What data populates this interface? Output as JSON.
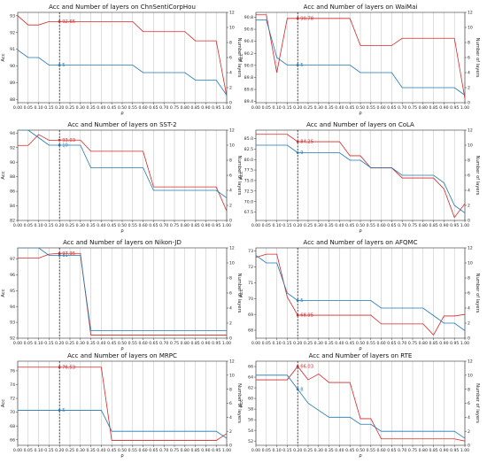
{
  "colors": {
    "acc": "#d62728",
    "layers": "#1f77b4",
    "grid": "#bdbdbd",
    "marker_line": "#000000"
  },
  "layout_words": {
    "grid": "vertical lines at every x tick",
    "left_axis": "Acc (red line)",
    "right_axis": "Number of layers (blue line)"
  },
  "chart_data": [
    {
      "type": "line",
      "title": "Acc and Number of layers on ChnSentiCorpHou",
      "xlabel": "ρ",
      "ylabel_left": "Acc",
      "ylabel_right": "Number of layers",
      "xticks": [
        "0.00",
        "0.05",
        "0.10",
        "0.15",
        "0.20",
        "0.25",
        "0.30",
        "0.35",
        "0.40",
        "0.45",
        "0.50",
        "0.55",
        "0.60",
        "0.65",
        "0.70",
        "0.75",
        "0.80",
        "0.85",
        "0.90",
        "0.95",
        "1.00"
      ],
      "yticks_left": [
        "88",
        "89",
        "90",
        "91",
        "92",
        "93"
      ],
      "ylim_left": [
        87.8,
        93.2
      ],
      "yticks_right": [
        "0",
        "2",
        "4",
        "6",
        "8",
        "10",
        "12"
      ],
      "ylim_right": [
        0,
        12
      ],
      "x": [
        0,
        0.05,
        0.1,
        0.15,
        0.2,
        0.25,
        0.3,
        0.35,
        0.4,
        0.45,
        0.5,
        0.55,
        0.6,
        0.65,
        0.7,
        0.75,
        0.8,
        0.85,
        0.9,
        0.95,
        1.0
      ],
      "series": [
        {
          "name": "Acc",
          "axis": "left",
          "values": [
            93.0,
            92.45,
            92.45,
            92.65,
            92.65,
            92.65,
            92.65,
            92.65,
            92.65,
            92.65,
            92.65,
            92.65,
            92.05,
            92.05,
            92.05,
            92.05,
            92.05,
            91.5,
            91.5,
            91.5,
            88.2
          ]
        },
        {
          "name": "Number of layers",
          "axis": "right",
          "values": [
            7,
            6,
            6,
            5,
            5,
            5,
            5,
            5,
            5,
            5,
            5,
            5,
            4,
            4,
            4,
            4,
            4,
            3,
            3,
            3,
            1
          ]
        }
      ],
      "marker": {
        "x": 0.2,
        "acc_label": "92.65",
        "layers_label": "5",
        "acc": 92.65,
        "layers": 5
      }
    },
    {
      "type": "line",
      "title": "Acc and Number of layers on WaiMai",
      "xlabel": "ρ",
      "ylabel_left": "Acc",
      "ylabel_right": "Number of layers",
      "xticks": [
        "0.00",
        "0.05",
        "0.10",
        "0.15",
        "0.20",
        "0.25",
        "0.30",
        "0.35",
        "0.40",
        "0.45",
        "0.50",
        "0.55",
        "0.60",
        "0.65",
        "0.70",
        "0.75",
        "0.80",
        "0.85",
        "0.90",
        "0.95",
        "1.00"
      ],
      "yticks_left": [
        "89.4",
        "89.6",
        "89.8",
        "90.0",
        "90.2",
        "90.4",
        "90.6",
        "90.8"
      ],
      "ylim_left": [
        89.38,
        90.88
      ],
      "yticks_right": [
        "0",
        "2",
        "4",
        "6",
        "8",
        "10",
        "12"
      ],
      "ylim_right": [
        0,
        12
      ],
      "x": [
        0,
        0.05,
        0.1,
        0.15,
        0.2,
        0.25,
        0.3,
        0.35,
        0.4,
        0.45,
        0.5,
        0.55,
        0.6,
        0.65,
        0.7,
        0.75,
        0.8,
        0.85,
        0.9,
        0.95,
        1.0
      ],
      "series": [
        {
          "name": "Acc",
          "axis": "left",
          "values": [
            90.84,
            90.84,
            89.88,
            90.78,
            90.78,
            90.78,
            90.78,
            90.78,
            90.78,
            90.78,
            90.33,
            90.33,
            90.33,
            90.33,
            90.45,
            90.45,
            90.45,
            90.45,
            90.45,
            90.45,
            89.45
          ]
        },
        {
          "name": "Number of layers",
          "axis": "right",
          "values": [
            11,
            11,
            6,
            5,
            5,
            5,
            5,
            5,
            5,
            5,
            4,
            4,
            4,
            4,
            2,
            2,
            2,
            2,
            2,
            2,
            1
          ]
        }
      ],
      "marker": {
        "x": 0.2,
        "acc_label": "90.78",
        "layers_label": "5",
        "acc": 90.78,
        "layers": 5
      }
    },
    {
      "type": "line",
      "title": "Acc and Number of layers on SST-2",
      "xlabel": "ρ",
      "ylabel_left": "Acc",
      "ylabel_right": "Number of layers",
      "xticks": [
        "0.00",
        "0.05",
        "0.10",
        "0.15",
        "0.20",
        "0.25",
        "0.30",
        "0.35",
        "0.40",
        "0.45",
        "0.50",
        "0.55",
        "0.60",
        "0.65",
        "0.70",
        "0.75",
        "0.80",
        "0.85",
        "0.90",
        "0.95",
        "1.00"
      ],
      "yticks_left": [
        "82",
        "84",
        "86",
        "88",
        "90",
        "92",
        "94"
      ],
      "ylim_left": [
        82,
        94.4
      ],
      "yticks_right": [
        "0",
        "2",
        "4",
        "6",
        "8",
        "10",
        "12"
      ],
      "ylim_right": [
        0,
        12
      ],
      "x": [
        0,
        0.05,
        0.1,
        0.15,
        0.2,
        0.25,
        0.3,
        0.35,
        0.4,
        0.45,
        0.5,
        0.55,
        0.6,
        0.65,
        0.7,
        0.75,
        0.8,
        0.85,
        0.9,
        0.95,
        1.0
      ],
      "series": [
        {
          "name": "Acc",
          "axis": "left",
          "values": [
            92.3,
            92.3,
            93.8,
            93.0,
            93.03,
            93.03,
            93.03,
            91.5,
            91.5,
            91.5,
            91.5,
            91.5,
            91.5,
            86.6,
            86.6,
            86.6,
            86.6,
            86.6,
            86.6,
            86.6,
            83.3
          ]
        },
        {
          "name": "Number of layers",
          "axis": "right",
          "values": [
            12,
            12,
            11,
            10,
            10,
            10,
            10,
            7,
            7,
            7,
            7,
            7,
            7,
            4,
            4,
            4,
            4,
            4,
            4,
            4,
            3
          ]
        }
      ],
      "marker": {
        "x": 0.2,
        "acc_label": "93.03",
        "layers_label": "10",
        "acc": 93.03,
        "layers": 10
      }
    },
    {
      "type": "line",
      "title": "Acc and Number of layers on CoLA",
      "xlabel": "ρ",
      "ylabel_left": "Acc",
      "ylabel_right": "Number of layers",
      "xticks": [
        "0.00",
        "0.05",
        "0.10",
        "0.15",
        "0.20",
        "0.25",
        "0.30",
        "0.35",
        "0.40",
        "0.45",
        "0.50",
        "0.55",
        "0.60",
        "0.65",
        "0.70",
        "0.75",
        "0.80",
        "0.85",
        "0.90",
        "0.95",
        "1.00"
      ],
      "yticks_left": [
        "67.5",
        "70.0",
        "72.5",
        "75.0",
        "77.5",
        "80.0",
        "82.5",
        "85.0"
      ],
      "ylim_left": [
        65.5,
        87.0
      ],
      "yticks_right": [
        "0",
        "2",
        "4",
        "6",
        "8",
        "10",
        "12"
      ],
      "ylim_right": [
        0,
        12
      ],
      "x": [
        0,
        0.05,
        0.1,
        0.15,
        0.2,
        0.25,
        0.3,
        0.35,
        0.4,
        0.45,
        0.5,
        0.55,
        0.6,
        0.65,
        0.7,
        0.75,
        0.8,
        0.85,
        0.9,
        0.95,
        1.0
      ],
      "series": [
        {
          "name": "Acc",
          "axis": "left",
          "values": [
            86.0,
            86.0,
            86.0,
            86.0,
            84.25,
            84.25,
            84.25,
            84.25,
            84.25,
            80.9,
            80.9,
            78.0,
            78.0,
            78.0,
            75.6,
            75.6,
            75.6,
            75.6,
            73.0,
            66.2,
            69.5
          ]
        },
        {
          "name": "Number of layers",
          "axis": "right",
          "values": [
            10,
            10,
            10,
            10,
            9,
            9,
            9,
            9,
            9,
            8,
            8,
            7,
            7,
            7,
            6,
            6,
            6,
            6,
            5,
            2,
            1
          ]
        }
      ],
      "marker": {
        "x": 0.2,
        "acc_label": "84.25",
        "layers_label": "9",
        "acc": 84.25,
        "layers": 9
      }
    },
    {
      "type": "line",
      "title": "Acc and Number of layers on Nikon-JD",
      "xlabel": "ρ",
      "ylabel_left": "Acc",
      "ylabel_right": "Number of layers",
      "xticks": [
        "0.00",
        "0.05",
        "0.10",
        "0.15",
        "0.20",
        "0.25",
        "0.30",
        "0.35",
        "0.40",
        "0.45",
        "0.50",
        "0.55",
        "0.60",
        "0.65",
        "0.70",
        "0.75",
        "0.80",
        "0.85",
        "0.90",
        "0.95",
        "1.00"
      ],
      "yticks_left": [
        "92",
        "93",
        "94",
        "95",
        "96",
        "97"
      ],
      "ylim_left": [
        92,
        97.7
      ],
      "yticks_right": [
        "0",
        "2",
        "4",
        "6",
        "8",
        "10",
        "12"
      ],
      "ylim_right": [
        0,
        12
      ],
      "x": [
        0,
        0.05,
        0.1,
        0.15,
        0.2,
        0.25,
        0.3,
        0.35,
        0.4,
        0.45,
        0.5,
        0.55,
        0.6,
        0.65,
        0.7,
        0.75,
        0.8,
        0.85,
        0.9,
        0.95,
        1.0
      ],
      "series": [
        {
          "name": "Acc",
          "axis": "left",
          "values": [
            97.05,
            97.05,
            97.05,
            97.3,
            97.35,
            97.35,
            97.35,
            92.2,
            92.2,
            92.2,
            92.2,
            92.2,
            92.2,
            92.2,
            92.2,
            92.2,
            92.2,
            92.2,
            92.2,
            92.2,
            92.2
          ]
        },
        {
          "name": "Number of layers",
          "axis": "right",
          "values": [
            12,
            12,
            12,
            11,
            11,
            11,
            11,
            1,
            1,
            1,
            1,
            1,
            1,
            1,
            1,
            1,
            1,
            1,
            1,
            1,
            1
          ]
        }
      ],
      "marker": {
        "x": 0.2,
        "acc_label": "97.35",
        "layers_label": "11",
        "acc": 97.35,
        "layers": 11
      }
    },
    {
      "type": "line",
      "title": "Acc and Number of layers on AFQMC",
      "xlabel": "ρ",
      "ylabel_left": "Acc",
      "ylabel_right": "Number of layers",
      "xticks": [
        "0.00",
        "0.05",
        "0.10",
        "0.15",
        "0.20",
        "0.25",
        "0.30",
        "0.35",
        "0.40",
        "0.45",
        "0.50",
        "0.55",
        "0.60",
        "0.65",
        "0.70",
        "0.75",
        "0.80",
        "0.85",
        "0.90",
        "0.95",
        "1.00"
      ],
      "yticks_left": [
        "68",
        "69",
        "70",
        "71",
        "72",
        "73"
      ],
      "ylim_left": [
        67.5,
        73.2
      ],
      "yticks_right": [
        "0",
        "2",
        "4",
        "6",
        "8",
        "10",
        "12"
      ],
      "ylim_right": [
        0,
        12
      ],
      "x": [
        0,
        0.05,
        0.1,
        0.15,
        0.2,
        0.25,
        0.3,
        0.35,
        0.4,
        0.45,
        0.5,
        0.55,
        0.6,
        0.65,
        0.7,
        0.75,
        0.8,
        0.85,
        0.9,
        0.95,
        1.0
      ],
      "series": [
        {
          "name": "Acc",
          "axis": "left",
          "values": [
            72.6,
            72.8,
            72.8,
            70.1,
            68.95,
            68.95,
            68.95,
            68.95,
            68.95,
            68.95,
            68.95,
            68.95,
            68.4,
            68.4,
            68.4,
            68.4,
            68.4,
            67.7,
            68.9,
            68.9,
            69.0
          ]
        },
        {
          "name": "Number of layers",
          "axis": "right",
          "values": [
            11,
            10,
            10,
            6,
            5,
            5,
            5,
            5,
            5,
            5,
            5,
            5,
            4,
            4,
            4,
            4,
            4,
            3,
            2,
            2,
            1
          ]
        }
      ],
      "marker": {
        "x": 0.2,
        "acc_label": "68.95",
        "layers_label": "5",
        "acc": 68.95,
        "layers": 5
      }
    },
    {
      "type": "line",
      "title": "Acc and Number of layers on MRPC",
      "xlabel": "ρ",
      "ylabel_left": "Acc",
      "ylabel_right": "Number of layers",
      "xticks": [
        "0.00",
        "0.05",
        "0.10",
        "0.15",
        "0.20",
        "0.25",
        "0.30",
        "0.35",
        "0.40",
        "0.45",
        "0.50",
        "0.55",
        "0.60",
        "0.65",
        "0.70",
        "0.75",
        "0.80",
        "0.85",
        "0.90",
        "0.95",
        "1.00"
      ],
      "yticks_left": [
        "66",
        "68",
        "70",
        "72",
        "74",
        "76"
      ],
      "ylim_left": [
        65.2,
        77.4
      ],
      "yticks_right": [
        "0",
        "2",
        "4",
        "6",
        "8",
        "10",
        "12"
      ],
      "ylim_right": [
        0,
        12
      ],
      "x": [
        0,
        0.05,
        0.1,
        0.15,
        0.2,
        0.25,
        0.3,
        0.35,
        0.4,
        0.45,
        0.5,
        0.55,
        0.6,
        0.65,
        0.7,
        0.75,
        0.8,
        0.85,
        0.9,
        0.95,
        1.0
      ],
      "series": [
        {
          "name": "Acc",
          "axis": "left",
          "values": [
            76.53,
            76.53,
            76.53,
            76.53,
            76.53,
            76.53,
            76.53,
            76.53,
            76.53,
            65.9,
            65.9,
            65.9,
            65.9,
            65.9,
            65.9,
            65.9,
            65.9,
            65.9,
            65.9,
            65.9,
            66.9
          ]
        },
        {
          "name": "Number of layers",
          "axis": "right",
          "values": [
            5,
            5,
            5,
            5,
            5,
            5,
            5,
            5,
            5,
            2,
            2,
            2,
            2,
            2,
            2,
            2,
            2,
            2,
            2,
            2,
            1
          ]
        }
      ],
      "marker": {
        "x": 0.2,
        "acc_label": "76.53",
        "layers_label": "5",
        "acc": 76.53,
        "layers": 5
      }
    },
    {
      "type": "line",
      "title": "Acc and Number of layers on RTE",
      "xlabel": "ρ",
      "ylabel_left": "Acc",
      "ylabel_right": "Number of layers",
      "xticks": [
        "0.00",
        "0.05",
        "0.10",
        "0.15",
        "0.20",
        "0.25",
        "0.30",
        "0.35",
        "0.40",
        "0.45",
        "0.50",
        "0.55",
        "0.60",
        "0.65",
        "0.70",
        "0.75",
        "0.80",
        "0.85",
        "0.90",
        "0.95",
        "1.00"
      ],
      "yticks_left": [
        "52",
        "54",
        "56",
        "58",
        "60",
        "62",
        "64",
        "66"
      ],
      "ylim_left": [
        51.2,
        67.0
      ],
      "yticks_right": [
        "0",
        "2",
        "4",
        "6",
        "8",
        "10",
        "12"
      ],
      "ylim_right": [
        0,
        12
      ],
      "x": [
        0,
        0.05,
        0.1,
        0.15,
        0.2,
        0.25,
        0.3,
        0.35,
        0.4,
        0.45,
        0.5,
        0.55,
        0.6,
        0.65,
        0.7,
        0.75,
        0.8,
        0.85,
        0.9,
        0.95,
        1.0
      ],
      "series": [
        {
          "name": "Acc",
          "axis": "left",
          "values": [
            63.5,
            63.5,
            63.5,
            63.5,
            66.03,
            63.5,
            64.6,
            63.0,
            63.0,
            63.0,
            56.2,
            56.2,
            52.4,
            52.4,
            52.4,
            52.4,
            52.4,
            52.4,
            52.4,
            52.4,
            52.0
          ]
        },
        {
          "name": "Number of layers",
          "axis": "right",
          "values": [
            10,
            10,
            10,
            10,
            8,
            6,
            5,
            4,
            4,
            4,
            3,
            3,
            2,
            2,
            2,
            2,
            2,
            2,
            2,
            2,
            1
          ]
        }
      ],
      "marker": {
        "x": 0.2,
        "acc_label": "66.03",
        "layers_label": "8",
        "acc": 66.03,
        "layers": 8
      }
    }
  ]
}
